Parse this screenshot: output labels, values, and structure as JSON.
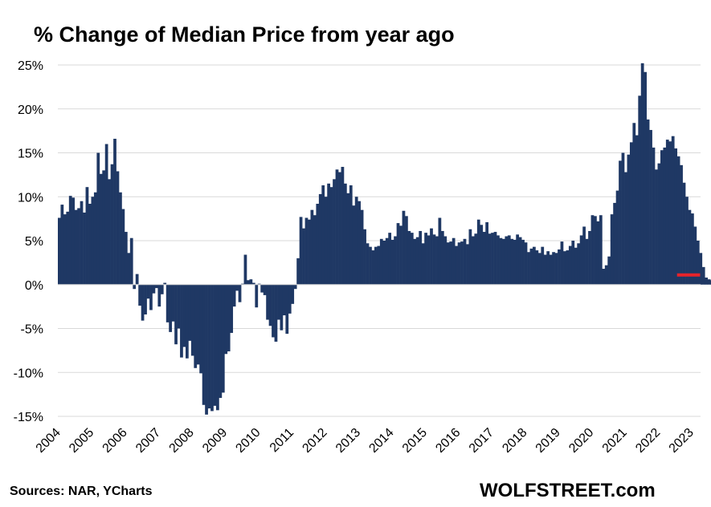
{
  "chart_data": {
    "type": "bar",
    "title": "% Change of Median Price from year ago",
    "source": "Sources: NAR, YCharts",
    "brand": "WOLFSTREET.com",
    "bar_color": "#1f3864",
    "marker_color": "#e8232a",
    "ylim": [
      -15,
      25
    ],
    "yticks": [
      -15,
      -10,
      -5,
      0,
      5,
      10,
      15,
      20,
      25
    ],
    "ytick_labels": [
      "-15%",
      "-10%",
      "-5%",
      "0%",
      "5%",
      "10%",
      "15%",
      "20%",
      "25%"
    ],
    "xtick_labels": [
      "2004",
      "2005",
      "2006",
      "2007",
      "2008",
      "2009",
      "2010",
      "2011",
      "2012",
      "2013",
      "2014",
      "2015",
      "2016",
      "2017",
      "2018",
      "2019",
      "2020",
      "2021",
      "2022",
      "2023"
    ],
    "start": "2004-01",
    "values": [
      7.6,
      9.1,
      8.0,
      8.3,
      10.1,
      9.9,
      8.5,
      8.7,
      9.5,
      8.2,
      11.1,
      9.2,
      10.0,
      10.5,
      15.0,
      12.6,
      13.0,
      16.0,
      12.0,
      13.7,
      16.6,
      12.9,
      10.5,
      8.6,
      6.0,
      3.6,
      5.3,
      -0.5,
      1.2,
      -2.4,
      -4.1,
      -3.4,
      -1.6,
      -2.9,
      -1.0,
      -0.4,
      -2.5,
      -1.1,
      0.2,
      -4.3,
      -5.4,
      -4.2,
      -6.8,
      -5.0,
      -8.3,
      -7.1,
      -8.4,
      -6.4,
      -8.1,
      -9.5,
      -9.1,
      -10.1,
      -13.7,
      -14.8,
      -14.1,
      -14.4,
      -13.8,
      -14.3,
      -12.9,
      -12.3,
      -7.9,
      -7.6,
      -5.5,
      -2.5,
      -0.7,
      -2.0,
      0.1,
      3.4,
      0.5,
      0.6,
      0.2,
      -2.6,
      0.1,
      -0.9,
      -1.2,
      -4.0,
      -4.7,
      -6.0,
      -6.5,
      -4.0,
      -5.2,
      -3.5,
      -5.6,
      -3.3,
      -2.2,
      -0.5,
      3.0,
      7.7,
      6.4,
      7.6,
      7.4,
      8.5,
      7.9,
      9.2,
      10.3,
      11.3,
      10.0,
      11.5,
      11.1,
      12.0,
      13.1,
      12.8,
      13.4,
      11.5,
      10.4,
      11.3,
      9.0,
      10.0,
      9.5,
      8.5,
      6.3,
      4.7,
      4.3,
      3.9,
      4.3,
      4.4,
      5.2,
      5.0,
      5.3,
      5.9,
      5.1,
      5.5,
      7.0,
      6.7,
      8.4,
      7.8,
      6.1,
      5.9,
      5.2,
      5.4,
      6.1,
      4.7,
      5.9,
      5.6,
      6.4,
      5.7,
      5.5,
      7.6,
      6.1,
      5.5,
      4.8,
      4.9,
      5.3,
      4.4,
      4.8,
      4.9,
      5.2,
      4.6,
      6.3,
      5.5,
      5.8,
      7.4,
      6.8,
      6.0,
      7.1,
      5.8,
      5.9,
      6.0,
      5.6,
      5.3,
      5.2,
      5.5,
      5.6,
      5.2,
      5.1,
      5.7,
      5.4,
      5.1,
      4.8,
      3.7,
      4.1,
      4.3,
      3.9,
      3.6,
      4.3,
      3.4,
      3.8,
      3.4,
      3.7,
      3.6,
      4.0,
      4.9,
      3.8,
      3.9,
      4.4,
      5.0,
      4.2,
      4.7,
      5.6,
      6.6,
      5.2,
      6.1,
      7.9,
      7.8,
      7.2,
      7.9,
      1.8,
      2.2,
      3.2,
      8.0,
      9.3,
      10.7,
      14.1,
      15.0,
      12.8,
      14.8,
      16.2,
      18.4,
      17.0,
      21.5,
      25.2,
      24.2,
      18.8,
      17.6,
      15.6,
      13.1,
      13.8,
      15.3,
      15.6,
      16.5,
      16.3,
      16.9,
      15.5,
      14.6,
      13.6,
      11.6,
      10.0,
      8.5,
      8.1,
      6.6,
      5.0,
      3.6,
      2.0,
      0.8,
      0.6,
      0.5,
      0.4
    ],
    "marker_value": 1.1,
    "marker_range": [
      "2022-08",
      "2023-01"
    ]
  }
}
